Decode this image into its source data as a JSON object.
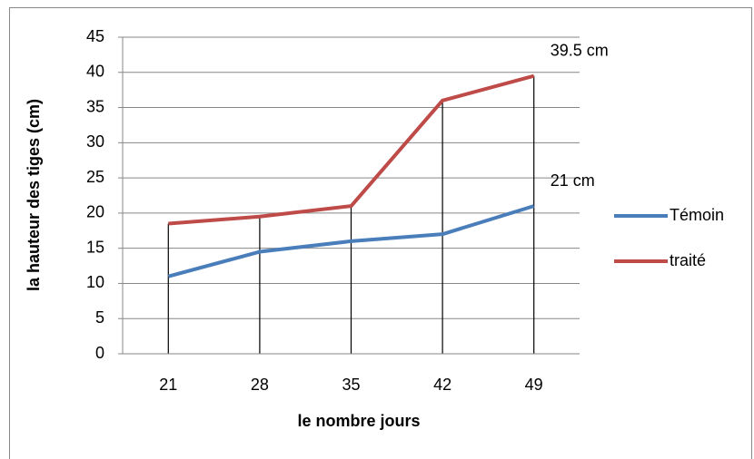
{
  "chart_data": {
    "type": "line",
    "x_label": "le nombre jours",
    "y_label": "la hauteur des tiges (cm)",
    "categories": [
      "21",
      "28",
      "35",
      "42",
      "49"
    ],
    "series": [
      {
        "name": "Témoin",
        "color": "#4a7ebb",
        "values": [
          11,
          14.5,
          16,
          17,
          21
        ],
        "end_label": "21 cm"
      },
      {
        "name": "traité",
        "color": "#be4b48",
        "values": [
          18.5,
          19.5,
          21,
          36,
          39.5
        ],
        "end_label": "39.5 cm"
      }
    ],
    "ylim": [
      0,
      45
    ],
    "yticks": [
      0,
      5,
      10,
      15,
      20,
      25,
      30,
      35,
      40,
      45
    ],
    "grid": true,
    "drop_lines": true,
    "legend": "right"
  }
}
